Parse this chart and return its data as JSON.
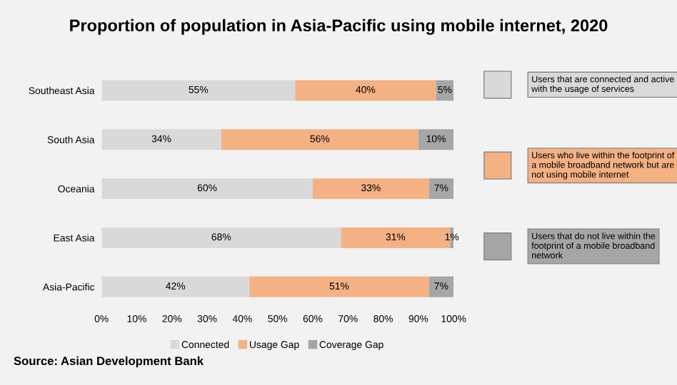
{
  "chart_data": {
    "type": "bar",
    "orientation": "horizontal",
    "stacked": true,
    "title": "Proportion of population in Asia-Pacific using mobile internet, 2020",
    "categories": [
      "Southeast Asia",
      "South Asia",
      "Oceania",
      "East Asia",
      "Asia-Pacific"
    ],
    "series": [
      {
        "name": "Connected",
        "color": "#d9d9d9",
        "values": [
          55,
          34,
          60,
          68,
          42
        ],
        "value_labels": [
          "55%",
          "34%",
          "60%",
          "68%",
          "42%"
        ]
      },
      {
        "name": "Usage Gap",
        "color": "#f4b183",
        "values": [
          40,
          56,
          33,
          31,
          51
        ],
        "value_labels": [
          "40%",
          "56%",
          "33%",
          "31%",
          "51%"
        ]
      },
      {
        "name": "Coverage Gap",
        "color": "#a6a6a6",
        "values": [
          5,
          10,
          7,
          1,
          7
        ],
        "value_labels": [
          "5%",
          "10%",
          "7%",
          "1%",
          "7%"
        ]
      }
    ],
    "xlim": [
      0,
      100
    ],
    "xticks": [
      {
        "value": 0,
        "label": "0%"
      },
      {
        "value": 10,
        "label": "10%"
      },
      {
        "value": 20,
        "label": "20%"
      },
      {
        "value": 30,
        "label": "30%"
      },
      {
        "value": 40,
        "label": "40%"
      },
      {
        "value": 50,
        "label": "50%"
      },
      {
        "value": 60,
        "label": "60%"
      },
      {
        "value": 70,
        "label": "70%"
      },
      {
        "value": 80,
        "label": "80%"
      },
      {
        "value": 90,
        "label": "90%"
      },
      {
        "value": 100,
        "label": "100%"
      }
    ],
    "grid": false,
    "legend": "bottom",
    "annotations": [
      "Users that are connected and active with the usage of services",
      "Users who live within the footprint of a mobile broadband network but are not using mobile internet",
      "Users that do not live within the footprint of a mobile broadband network",
      "Source: Asian Development Bank"
    ]
  }
}
